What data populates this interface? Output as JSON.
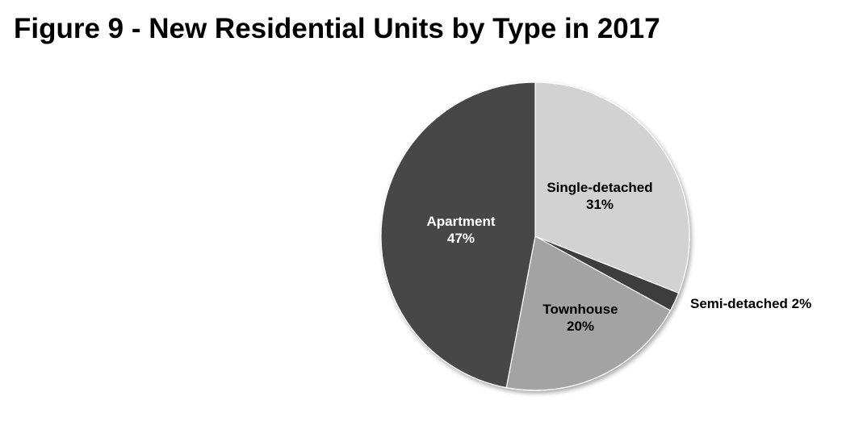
{
  "chart_data": {
    "type": "pie",
    "title": "Figure 9 - New Residential Units by Type in 2017",
    "slices": [
      {
        "name": "Single-detached",
        "value": 31,
        "label": "31%",
        "color": "#d2d2d2",
        "text_color": "#000000"
      },
      {
        "name": "Semi-detached",
        "value": 2,
        "label": "2%",
        "color": "#3c3c3c",
        "text_color": "#000000"
      },
      {
        "name": "Townhouse",
        "value": 20,
        "label": "20%",
        "color": "#a3a3a3",
        "text_color": "#000000"
      },
      {
        "name": "Apartment",
        "value": 47,
        "label": "47%",
        "color": "#464646",
        "text_color": "#ffffff"
      }
    ],
    "start_angle": "12 o'clock",
    "direction": "clockwise",
    "legend": "none"
  }
}
